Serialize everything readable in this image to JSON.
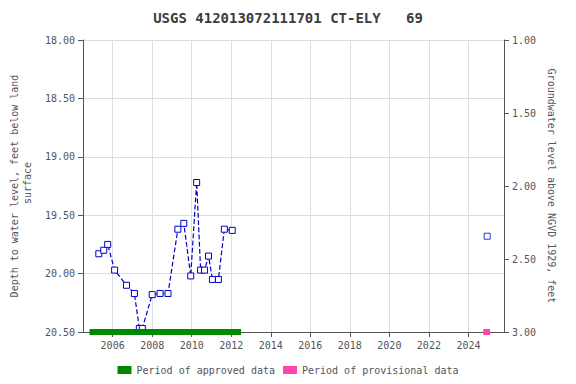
{
  "chart_data": {
    "type": "line",
    "title": "USGS 412013072111701 CT-ELY   69",
    "y_label": "Depth to water level, feet below land\n surface",
    "y2_label": "Groundwater level above NGVD 1929, feet",
    "x": [
      2005.3,
      2005.55,
      2005.75,
      2006.1,
      2006.7,
      2007.1,
      2007.35,
      2007.5,
      2008.0,
      2008.4,
      2008.8,
      2009.3,
      2009.6,
      2009.95,
      2010.25,
      2010.45,
      2010.65,
      2010.85,
      2011.05,
      2011.35,
      2011.65,
      2012.05,
      2024.95
    ],
    "xlim": [
      2004.5,
      2025.8
    ],
    "xticks": [
      2006,
      2008,
      2010,
      2012,
      2014,
      2016,
      2018,
      2020,
      2022,
      2024
    ],
    "ylim": [
      20.5,
      18.0
    ],
    "yticks": [
      {
        "value": 18.0,
        "label": "18.00"
      },
      {
        "value": 18.5,
        "label": "18.50"
      },
      {
        "value": 19.0,
        "label": "19.00"
      },
      {
        "value": 19.5,
        "label": "19.50"
      },
      {
        "value": 20.0,
        "label": "20.00"
      },
      {
        "value": 20.5,
        "label": "20.50"
      }
    ],
    "y2lim": [
      3.0,
      1.0
    ],
    "y2ticks": [
      {
        "value": 3.0,
        "label": "3.00"
      },
      {
        "value": 2.5,
        "label": "2.50"
      },
      {
        "value": 2.0,
        "label": "2.00"
      },
      {
        "value": 1.5,
        "label": "1.50"
      },
      {
        "value": 1.0,
        "label": "1.00"
      }
    ],
    "grid": true,
    "legend": "bottom",
    "series": [
      {
        "type": "line",
        "color": "#0000cc",
        "marker": "square",
        "line_style": "dashed",
        "values": [
          19.83,
          19.8,
          19.75,
          19.97,
          20.1,
          20.17,
          20.47,
          20.47,
          20.18,
          20.17,
          20.17,
          19.62,
          19.57,
          20.02,
          19.22,
          19.97,
          19.97,
          19.85,
          20.05,
          20.05,
          19.62,
          19.63,
          null
        ]
      },
      {
        "type": "scatter",
        "color": "#0000cc",
        "marker": "square",
        "values": [
          null,
          null,
          null,
          null,
          null,
          null,
          null,
          null,
          null,
          null,
          null,
          null,
          null,
          null,
          null,
          null,
          null,
          null,
          null,
          null,
          null,
          null,
          19.68
        ]
      }
    ],
    "periods": [
      {
        "name": "Period of approved data",
        "color": "#008800",
        "start": 2004.83,
        "end": 2012.5
      },
      {
        "name": "Period of provisional data",
        "color": "#ff44aa",
        "start": 2024.75,
        "end": 2025.1
      }
    ]
  }
}
